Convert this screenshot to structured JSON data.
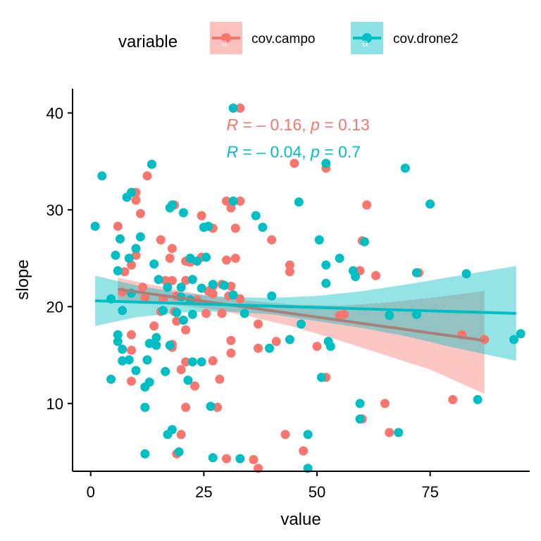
{
  "chart_data": {
    "type": "scatter",
    "xlabel": "value",
    "ylabel": "slope",
    "xlim": [
      -4,
      97
    ],
    "ylim": [
      3,
      42.5
    ],
    "x_ticks": [
      0,
      25,
      50,
      75
    ],
    "y_ticks": [
      10,
      20,
      30,
      40
    ],
    "grid": false,
    "legend": {
      "title": "variable",
      "placement": "top",
      "key_glyph": "a"
    },
    "series": [
      {
        "name": "cov.campo",
        "color": "#F8766D",
        "ribbon_color": "#F8766D",
        "points": [
          [
            33,
            40.5
          ],
          [
            13.5,
            34.7
          ],
          [
            45,
            34.8
          ],
          [
            52,
            34.3
          ],
          [
            12.5,
            33.5
          ],
          [
            10,
            31.8
          ],
          [
            10,
            31.0
          ],
          [
            18.5,
            30.5
          ],
          [
            30,
            30.9
          ],
          [
            31,
            30.2
          ],
          [
            33,
            30.9
          ],
          [
            61,
            30.5
          ],
          [
            11,
            29.6
          ],
          [
            24.5,
            29.4
          ],
          [
            6,
            28.3
          ],
          [
            27,
            28.1
          ],
          [
            32,
            28.1
          ],
          [
            40,
            26.9
          ],
          [
            60,
            26.8
          ],
          [
            15.5,
            26.9
          ],
          [
            18,
            26.0
          ],
          [
            10,
            25.3
          ],
          [
            17.5,
            25.0
          ],
          [
            21,
            24.7
          ],
          [
            24.5,
            25.1
          ],
          [
            30,
            24.8
          ],
          [
            32,
            25.0
          ],
          [
            9,
            24.3
          ],
          [
            7.5,
            23.6
          ],
          [
            44,
            24.3
          ],
          [
            44,
            23.6
          ],
          [
            59.5,
            23.7
          ],
          [
            63,
            23.2
          ],
          [
            72.5,
            23.5
          ],
          [
            16.5,
            22.7
          ],
          [
            18,
            22.7
          ],
          [
            21,
            22.7
          ],
          [
            11.5,
            22.0
          ],
          [
            27,
            22.1
          ],
          [
            29,
            22.3
          ],
          [
            31,
            22.1
          ],
          [
            26,
            21.6
          ],
          [
            12,
            20.9
          ],
          [
            16,
            20.8
          ],
          [
            19,
            21.1
          ],
          [
            23.5,
            20.7
          ],
          [
            27,
            21.3
          ],
          [
            30.5,
            21.1
          ],
          [
            15.5,
            19.5
          ],
          [
            18.5,
            19.5
          ],
          [
            25.5,
            19.3
          ],
          [
            29,
            19.3
          ],
          [
            19,
            18.5
          ],
          [
            37,
            18.2
          ],
          [
            55,
            19.1
          ],
          [
            56,
            19.2
          ],
          [
            21,
            17.6
          ],
          [
            9,
            17.1
          ],
          [
            18,
            16.1
          ],
          [
            31,
            16.5
          ],
          [
            41,
            16.4
          ],
          [
            9,
            15.5
          ],
          [
            18,
            15.8
          ],
          [
            31,
            15.2
          ],
          [
            37,
            15.7
          ],
          [
            50,
            15.9
          ],
          [
            82,
            17.1
          ],
          [
            87,
            16.6
          ],
          [
            12.5,
            14.5
          ],
          [
            21,
            14.3
          ],
          [
            27,
            14.4
          ],
          [
            20,
            13.5
          ],
          [
            23,
            11.8
          ],
          [
            28.5,
            12.5
          ],
          [
            9,
            12.3
          ],
          [
            52,
            12.7
          ],
          [
            21,
            9.6
          ],
          [
            28,
            9.6
          ],
          [
            60,
            8.4
          ],
          [
            65,
            10.0
          ],
          [
            80,
            10.4
          ],
          [
            20,
            6.8
          ],
          [
            43,
            6.8
          ],
          [
            66,
            7.0
          ],
          [
            19,
            4.8
          ],
          [
            30,
            4.3
          ],
          [
            36,
            4.2
          ],
          [
            37,
            3.3
          ],
          [
            47,
            5.1
          ],
          [
            22,
            24.6
          ],
          [
            14,
            18.0
          ],
          [
            33,
            20.8
          ],
          [
            7,
            21.5
          ]
        ]
      },
      {
        "name": "cov.drone2",
        "color": "#00BFC4",
        "ribbon_color": "#00BFC4",
        "points": [
          [
            31.5,
            40.5
          ],
          [
            2.5,
            33.5
          ],
          [
            13.5,
            34.7
          ],
          [
            52,
            34.8
          ],
          [
            69.5,
            34.3
          ],
          [
            9,
            31.8
          ],
          [
            8,
            31.3
          ],
          [
            17.5,
            30.2
          ],
          [
            18,
            30.5
          ],
          [
            20.5,
            29.7
          ],
          [
            31.5,
            30.9
          ],
          [
            46,
            30.8
          ],
          [
            75,
            30.6
          ],
          [
            1,
            28.3
          ],
          [
            25,
            28.2
          ],
          [
            26,
            28.3
          ],
          [
            6.5,
            27.0
          ],
          [
            11,
            27.2
          ],
          [
            36.5,
            29.4
          ],
          [
            38,
            28.2
          ],
          [
            50.5,
            26.9
          ],
          [
            60.5,
            26.7
          ],
          [
            10,
            26.0
          ],
          [
            5.5,
            25.3
          ],
          [
            8.5,
            25.0
          ],
          [
            14,
            24.4
          ],
          [
            22,
            25.0
          ],
          [
            23.5,
            24.7
          ],
          [
            25.5,
            25.1
          ],
          [
            52,
            24.3
          ],
          [
            55,
            25.0
          ],
          [
            6,
            23.7
          ],
          [
            15,
            22.8
          ],
          [
            22.5,
            22.8
          ],
          [
            27,
            22.3
          ],
          [
            29.5,
            22.2
          ],
          [
            52,
            22.4
          ],
          [
            58,
            23.7
          ],
          [
            58.5,
            23.1
          ],
          [
            72,
            23.5
          ],
          [
            83,
            23.4
          ],
          [
            17,
            22.0
          ],
          [
            24.5,
            21.9
          ],
          [
            20,
            21.0
          ],
          [
            22,
            20.7
          ],
          [
            9,
            21.4
          ],
          [
            4.5,
            20.8
          ],
          [
            31.5,
            21.2
          ],
          [
            40,
            21.1
          ],
          [
            7,
            19.6
          ],
          [
            16,
            19.6
          ],
          [
            19,
            19.4
          ],
          [
            22.5,
            19.2
          ],
          [
            34,
            19.3
          ],
          [
            46.5,
            18.2
          ],
          [
            20.5,
            18.6
          ],
          [
            66,
            19.1
          ],
          [
            72,
            19.2
          ],
          [
            6,
            17.1
          ],
          [
            14.5,
            16.8
          ],
          [
            17.5,
            16.0
          ],
          [
            13,
            16.2
          ],
          [
            6,
            16.4
          ],
          [
            7,
            15.6
          ],
          [
            14.5,
            16.0
          ],
          [
            44,
            16.6
          ],
          [
            52.5,
            16.4
          ],
          [
            53,
            15.9
          ],
          [
            93.5,
            16.6
          ],
          [
            95,
            17.2
          ],
          [
            7,
            14.4
          ],
          [
            8.5,
            14.5
          ],
          [
            12.5,
            14.5
          ],
          [
            10,
            13.4
          ],
          [
            16.5,
            13.3
          ],
          [
            22.5,
            14.3
          ],
          [
            24.5,
            14.3
          ],
          [
            4.5,
            12.5
          ],
          [
            13,
            12.2
          ],
          [
            12,
            11.7
          ],
          [
            21.5,
            12.4
          ],
          [
            51,
            12.7
          ],
          [
            12,
            9.6
          ],
          [
            26.5,
            9.7
          ],
          [
            59.5,
            10.0
          ],
          [
            59.5,
            8.4
          ],
          [
            85.5,
            10.4
          ],
          [
            18,
            7.3
          ],
          [
            17,
            6.8
          ],
          [
            48,
            6.8
          ],
          [
            68,
            7.0
          ],
          [
            12,
            4.8
          ],
          [
            19.5,
            5.0
          ],
          [
            27,
            4.4
          ],
          [
            33,
            4.3
          ],
          [
            48,
            3.3
          ],
          [
            39.5,
            15.7
          ],
          [
            20,
            22.0
          ]
        ]
      }
    ],
    "fits": [
      {
        "series": "cov.campo",
        "line": [
          [
            6,
            21.8
          ],
          [
            87,
            16.5
          ]
        ],
        "band": [
          [
            6,
            23.0,
            20.6
          ],
          [
            16,
            22.0,
            20.3
          ],
          [
            26,
            21.1,
            19.8
          ],
          [
            35,
            20.6,
            19.0
          ],
          [
            45,
            20.2,
            17.9
          ],
          [
            55,
            20.1,
            16.5
          ],
          [
            65,
            20.4,
            15.0
          ],
          [
            75,
            20.9,
            13.5
          ],
          [
            87,
            21.6,
            11.0
          ]
        ]
      },
      {
        "series": "cov.drone2",
        "line": [
          [
            1,
            20.6
          ],
          [
            94,
            19.3
          ]
        ],
        "band": [
          [
            1,
            23.2,
            18.0
          ],
          [
            10,
            22.2,
            18.9
          ],
          [
            20,
            21.4,
            19.4
          ],
          [
            30,
            21.0,
            19.5
          ],
          [
            40,
            20.9,
            19.2
          ],
          [
            50,
            21.1,
            18.5
          ],
          [
            60,
            21.6,
            17.8
          ],
          [
            70,
            22.3,
            16.9
          ],
          [
            80,
            23.1,
            15.8
          ],
          [
            94,
            24.2,
            14.4
          ]
        ]
      }
    ],
    "annotations": [
      {
        "series": "cov.campo",
        "x": 30,
        "y": 38.2,
        "R_symbol": "R",
        "eq": " = – 0.16, ",
        "p_symbol": "p",
        "p_eq": " = 0.13"
      },
      {
        "series": "cov.drone2",
        "x": 30,
        "y": 35.4,
        "R_symbol": "R",
        "eq": " = – 0.04, ",
        "p_symbol": "p",
        "p_eq": " = 0.7"
      }
    ]
  }
}
